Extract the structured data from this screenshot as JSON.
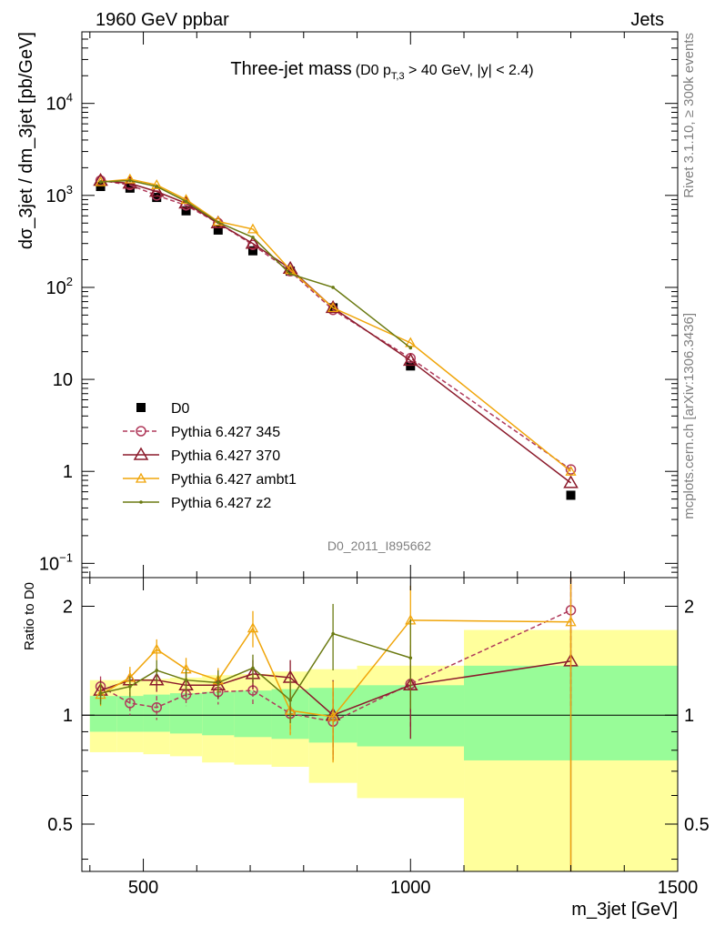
{
  "chart_data": [
    {
      "type": "line",
      "panel": "main",
      "header_left": "1960 GeV ppbar",
      "header_right": "Jets",
      "title": "Three-jet mass",
      "title_detail_prefix": "(D0 p",
      "title_detail_sub": "T,3",
      "title_detail_suffix": " > 40 GeV, |y| < 2.4)",
      "ylabel": "dσ_3jet / dm_3jet [pb/GeV]",
      "xlabel": "m_3jet [GeV]",
      "y_scale": "log",
      "xlim": [
        385,
        1500
      ],
      "ylim": [
        0.07,
        60000
      ],
      "x_ticks": [
        {
          "v": 500,
          "label": "500"
        },
        {
          "v": 1000,
          "label": "1000"
        },
        {
          "v": 1500,
          "label": "1500"
        }
      ],
      "y_ticks": [
        {
          "v": 0.1,
          "base": "10",
          "exp": "−1"
        },
        {
          "v": 1,
          "base": "1",
          "exp": ""
        },
        {
          "v": 10,
          "base": "10",
          "exp": ""
        },
        {
          "v": 100,
          "base": "10",
          "exp": "2"
        },
        {
          "v": 1000,
          "base": "10",
          "exp": "3"
        },
        {
          "v": 10000,
          "base": "10",
          "exp": "4"
        }
      ],
      "analysis_label": "D0_2011_I895662",
      "side_label_top": "Rivet 3.1.10, ≥ 300k events",
      "side_label_bottom": "mcplots.cern.ch [arXiv:1306.3436]",
      "legend_position": "lower-left",
      "series": [
        {
          "name": "D0",
          "style": "marker-square",
          "color": "#000000",
          "x": [
            420,
            475,
            525,
            580,
            640,
            705,
            775,
            855,
            1000,
            1300
          ],
          "y": [
            1250,
            1200,
            950,
            680,
            420,
            250,
            150,
            60,
            14,
            0.55
          ]
        },
        {
          "name": "Pythia 6.427 345",
          "style": "dashed-circle",
          "color": "#b03a5b",
          "x": [
            420,
            475,
            525,
            580,
            640,
            705,
            775,
            855,
            1000,
            1300
          ],
          "y": [
            1450,
            1300,
            1000,
            780,
            500,
            290,
            150,
            57,
            17,
            1.05
          ],
          "err": [
            0,
            0,
            0,
            0,
            0,
            0,
            0,
            0,
            0,
            0
          ]
        },
        {
          "name": "Pythia 6.427 370",
          "style": "solid-triangle",
          "color": "#8b1a2b",
          "x": [
            420,
            475,
            525,
            580,
            640,
            705,
            775,
            855,
            1000,
            1300
          ],
          "y": [
            1450,
            1350,
            1100,
            820,
            500,
            300,
            160,
            60,
            16,
            0.75
          ]
        },
        {
          "name": "Pythia 6.427 ambt1",
          "style": "solid-small-triangle",
          "color": "#f0a50a",
          "x": [
            420,
            475,
            525,
            580,
            640,
            705,
            775,
            855,
            1000,
            1300
          ],
          "y": [
            1400,
            1500,
            1300,
            900,
            520,
            430,
            155,
            60,
            25,
            1.0
          ]
        },
        {
          "name": "Pythia 6.427 z2",
          "style": "solid-dot",
          "color": "#6b7a12",
          "x": [
            420,
            475,
            525,
            580,
            640,
            705,
            775,
            855,
            1000
          ],
          "y": [
            1400,
            1450,
            1250,
            860,
            510,
            350,
            140,
            100,
            22
          ]
        }
      ]
    },
    {
      "type": "line",
      "panel": "ratio",
      "ylabel": "Ratio to D0",
      "y_scale": "log",
      "ylim": [
        0.37,
        2.4
      ],
      "y_ticks": [
        {
          "v": 0.5,
          "label": "0.5"
        },
        {
          "v": 1,
          "label": "1"
        },
        {
          "v": 2,
          "label": "2"
        }
      ],
      "uncertainty_bands": [
        {
          "x0": 400,
          "x1": 450,
          "inner": [
            0.9,
            1.13
          ],
          "outer": [
            0.79,
            1.25
          ]
        },
        {
          "x0": 450,
          "x1": 500,
          "inner": [
            0.9,
            1.13
          ],
          "outer": [
            0.79,
            1.25
          ]
        },
        {
          "x0": 500,
          "x1": 550,
          "inner": [
            0.9,
            1.14
          ],
          "outer": [
            0.78,
            1.26
          ]
        },
        {
          "x0": 550,
          "x1": 610,
          "inner": [
            0.89,
            1.15
          ],
          "outer": [
            0.77,
            1.27
          ]
        },
        {
          "x0": 610,
          "x1": 670,
          "inner": [
            0.88,
            1.16
          ],
          "outer": [
            0.74,
            1.29
          ]
        },
        {
          "x0": 670,
          "x1": 740,
          "inner": [
            0.87,
            1.17
          ],
          "outer": [
            0.73,
            1.3
          ]
        },
        {
          "x0": 740,
          "x1": 810,
          "inner": [
            0.86,
            1.18
          ],
          "outer": [
            0.72,
            1.32
          ]
        },
        {
          "x0": 810,
          "x1": 900,
          "inner": [
            0.84,
            1.19
          ],
          "outer": [
            0.65,
            1.34
          ]
        },
        {
          "x0": 900,
          "x1": 1100,
          "inner": [
            0.82,
            1.21
          ],
          "outer": [
            0.59,
            1.37
          ]
        },
        {
          "x0": 1100,
          "x1": 1500,
          "inner": [
            0.75,
            1.37
          ],
          "outer": [
            0.37,
            1.72
          ]
        }
      ],
      "band_colors": {
        "inner": "#98fc98",
        "outer": "#ffff9c"
      },
      "series": [
        {
          "name": "Pythia 6.427 345",
          "style": "dashed-circle",
          "color": "#b03a5b",
          "x": [
            420,
            475,
            525,
            580,
            640,
            705,
            775,
            855,
            1000,
            1300
          ],
          "y": [
            1.2,
            1.08,
            1.05,
            1.14,
            1.16,
            1.17,
            1.01,
            0.96,
            1.22,
            1.95
          ],
          "err": [
            0.08,
            0.08,
            0.08,
            0.08,
            0.09,
            0.1,
            0.12,
            0.2,
            0.3,
            0.9
          ]
        },
        {
          "name": "Pythia 6.427 370",
          "style": "solid-triangle",
          "color": "#8b1a2b",
          "x": [
            420,
            475,
            525,
            580,
            640,
            705,
            775,
            855,
            1000,
            1300
          ],
          "y": [
            1.17,
            1.25,
            1.25,
            1.21,
            1.21,
            1.3,
            1.27,
            1.0,
            1.21,
            1.41
          ],
          "err": [
            0.08,
            0.08,
            0.09,
            0.09,
            0.1,
            0.12,
            0.15,
            0.25,
            0.35,
            1.2
          ]
        },
        {
          "name": "Pythia 6.427 ambt1",
          "style": "solid-small-triangle",
          "color": "#f0a50a",
          "x": [
            420,
            475,
            525,
            580,
            640,
            705,
            775,
            855,
            1000,
            1300
          ],
          "y": [
            1.14,
            1.27,
            1.52,
            1.34,
            1.25,
            1.74,
            1.03,
            0.99,
            1.83,
            1.81
          ],
          "err": [
            0.08,
            0.09,
            0.1,
            0.1,
            0.1,
            0.2,
            0.15,
            0.25,
            0.45,
            1.5
          ]
        },
        {
          "name": "Pythia 6.427 z2",
          "style": "solid-dot",
          "color": "#6b7a12",
          "x": [
            420,
            475,
            525,
            580,
            640,
            705,
            775,
            855,
            1000
          ],
          "y": [
            1.15,
            1.2,
            1.33,
            1.25,
            1.23,
            1.35,
            1.1,
            1.68,
            1.44
          ],
          "err": [
            0.08,
            0.08,
            0.09,
            0.09,
            0.1,
            0.12,
            0.15,
            0.35,
            0.4
          ]
        }
      ]
    }
  ]
}
